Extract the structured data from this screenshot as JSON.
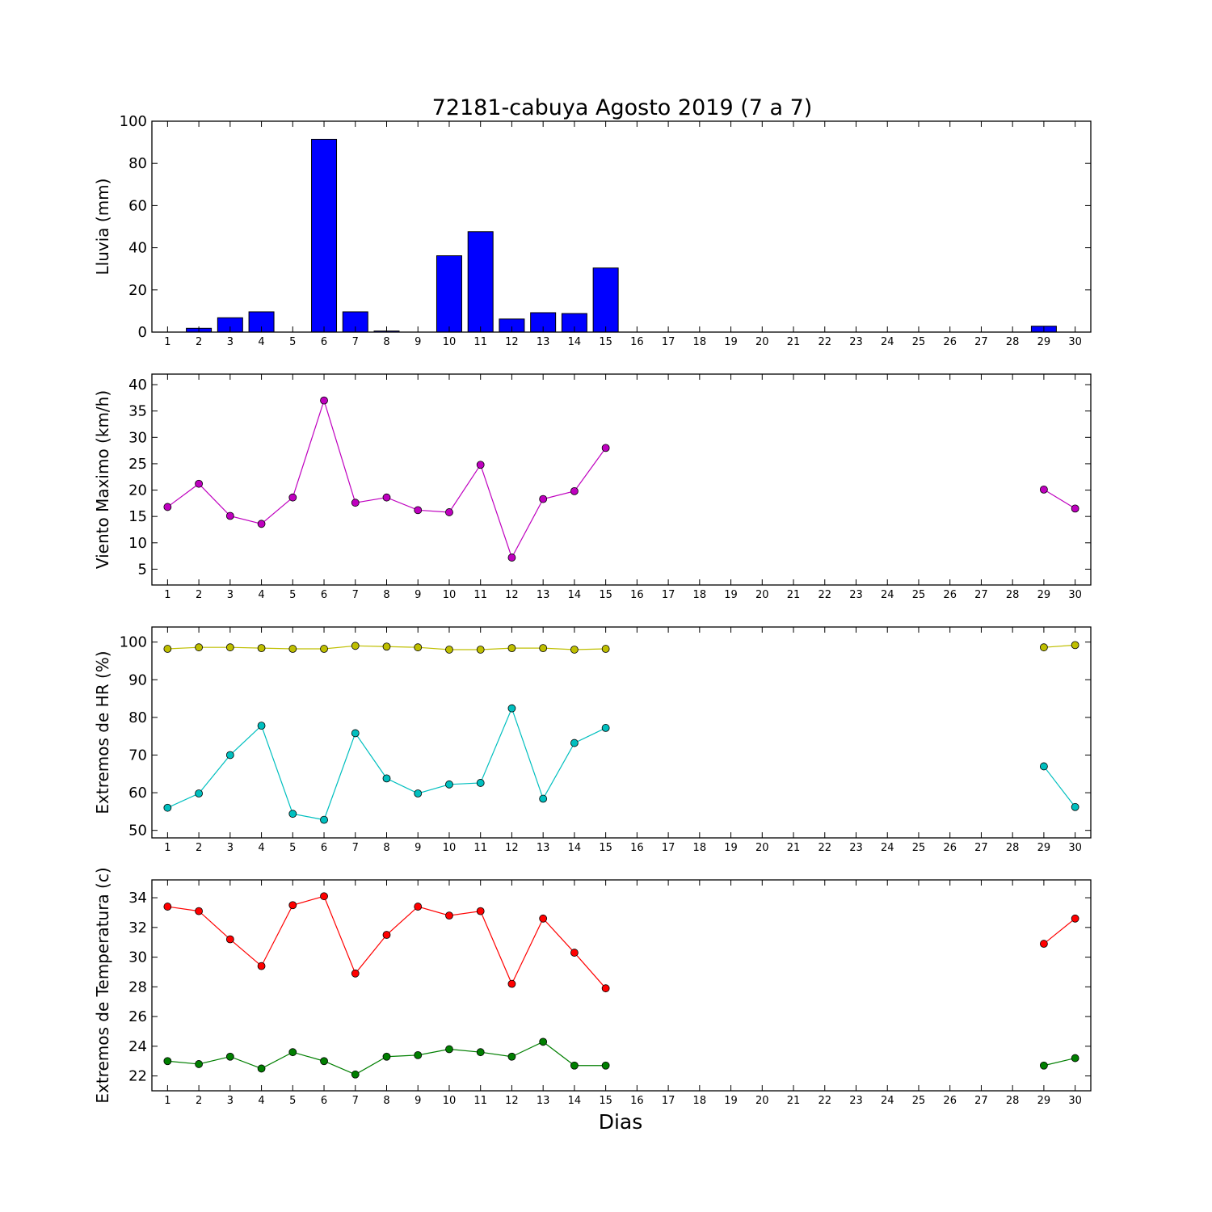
{
  "figure": {
    "title": "72181-cabuya Agosto 2019  (7 a 7)",
    "xlabel": "Dias"
  },
  "chart_data": [
    {
      "type": "bar",
      "ylabel": "Lluvia (mm)",
      "x": [
        1,
        2,
        3,
        4,
        5,
        6,
        7,
        8,
        9,
        10,
        11,
        12,
        13,
        14,
        15,
        16,
        17,
        18,
        19,
        20,
        21,
        22,
        23,
        24,
        25,
        26,
        27,
        28,
        29,
        30
      ],
      "ylim": [
        0,
        100
      ],
      "yticks": [
        0,
        20,
        40,
        60,
        80,
        100
      ],
      "series": [
        {
          "color": "#0000ff",
          "values": [
            0,
            1.8,
            6.8,
            9.6,
            0,
            91.4,
            9.6,
            0.5,
            0,
            36.2,
            47.6,
            6.2,
            9.2,
            8.8,
            30.4,
            0,
            0,
            0,
            0,
            0,
            0,
            0,
            0,
            0,
            0,
            0,
            0,
            0,
            2.8,
            0
          ]
        }
      ]
    },
    {
      "type": "line",
      "ylabel": "Viento Maximo (km/h)",
      "x": [
        1,
        2,
        3,
        4,
        5,
        6,
        7,
        8,
        9,
        10,
        11,
        12,
        13,
        14,
        15,
        16,
        17,
        18,
        19,
        20,
        21,
        22,
        23,
        24,
        25,
        26,
        27,
        28,
        29,
        30
      ],
      "ylim": [
        2,
        42
      ],
      "yticks": [
        5,
        10,
        15,
        20,
        25,
        30,
        35,
        40
      ],
      "series": [
        {
          "color": "#bf00bf",
          "values": [
            16.8,
            21.2,
            15.1,
            13.6,
            18.6,
            37.0,
            17.6,
            18.6,
            16.2,
            15.8,
            24.8,
            7.2,
            18.3,
            19.8,
            28.0,
            null,
            null,
            null,
            null,
            null,
            null,
            null,
            null,
            null,
            null,
            null,
            null,
            null,
            20.1,
            16.5
          ]
        }
      ]
    },
    {
      "type": "line",
      "ylabel": "Extremos de HR (%)",
      "x": [
        1,
        2,
        3,
        4,
        5,
        6,
        7,
        8,
        9,
        10,
        11,
        12,
        13,
        14,
        15,
        16,
        17,
        18,
        19,
        20,
        21,
        22,
        23,
        24,
        25,
        26,
        27,
        28,
        29,
        30
      ],
      "ylim": [
        48,
        104
      ],
      "yticks": [
        50,
        60,
        70,
        80,
        90,
        100
      ],
      "series": [
        {
          "color": "#bfbf00",
          "values": [
            98.2,
            98.6,
            98.6,
            98.4,
            98.2,
            98.2,
            99.0,
            98.8,
            98.6,
            98.0,
            98.0,
            98.4,
            98.4,
            98.0,
            98.2,
            null,
            null,
            null,
            null,
            null,
            null,
            null,
            null,
            null,
            null,
            null,
            null,
            null,
            98.6,
            99.2
          ]
        },
        {
          "color": "#00bfbf",
          "values": [
            56.0,
            59.8,
            70.0,
            77.8,
            54.4,
            52.8,
            75.8,
            63.8,
            59.8,
            62.2,
            62.6,
            82.4,
            58.4,
            73.2,
            77.2,
            null,
            null,
            null,
            null,
            null,
            null,
            null,
            null,
            null,
            null,
            null,
            null,
            null,
            67.0,
            56.2
          ]
        }
      ]
    },
    {
      "type": "line",
      "ylabel": "Extremos de Temperatura (c)",
      "x": [
        1,
        2,
        3,
        4,
        5,
        6,
        7,
        8,
        9,
        10,
        11,
        12,
        13,
        14,
        15,
        16,
        17,
        18,
        19,
        20,
        21,
        22,
        23,
        24,
        25,
        26,
        27,
        28,
        29,
        30
      ],
      "ylim": [
        21,
        35.2
      ],
      "yticks": [
        22,
        24,
        26,
        28,
        30,
        32,
        34
      ],
      "series": [
        {
          "color": "#ff0000",
          "values": [
            33.4,
            33.1,
            31.2,
            29.4,
            33.5,
            34.1,
            28.9,
            31.5,
            33.4,
            32.8,
            33.1,
            28.2,
            32.6,
            30.3,
            27.9,
            null,
            null,
            null,
            null,
            null,
            null,
            null,
            null,
            null,
            null,
            null,
            null,
            null,
            30.9,
            32.6
          ]
        },
        {
          "color": "#007f00",
          "values": [
            23.0,
            22.8,
            23.3,
            22.5,
            23.6,
            23.0,
            22.1,
            23.3,
            23.4,
            23.8,
            23.6,
            23.3,
            24.3,
            22.7,
            22.7,
            null,
            null,
            null,
            null,
            null,
            null,
            null,
            null,
            null,
            null,
            null,
            null,
            null,
            22.7,
            23.2
          ]
        }
      ]
    }
  ]
}
